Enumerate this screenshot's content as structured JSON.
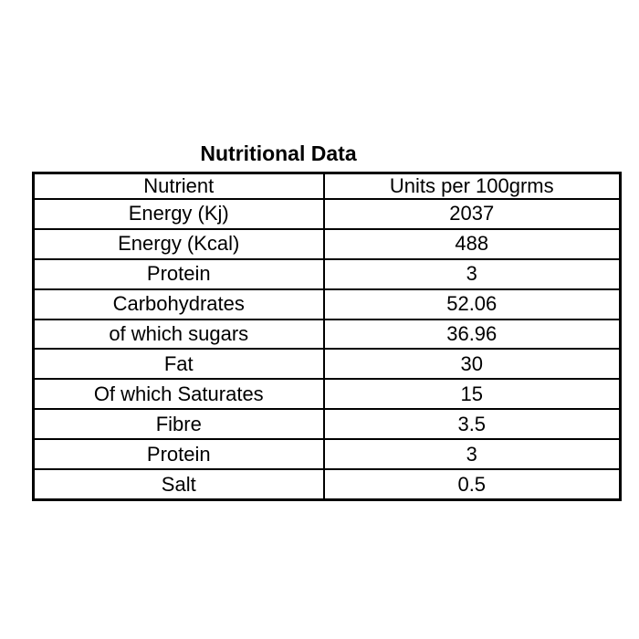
{
  "page": {
    "title": "Nutritional Data"
  },
  "chart_data": {
    "type": "table",
    "title": "Nutritional Data",
    "columns": [
      "Nutrient",
      "Units per 100grms"
    ],
    "rows": [
      {
        "nutrient": "Energy (Kj)",
        "value": "2037"
      },
      {
        "nutrient": "Energy (Kcal)",
        "value": "488"
      },
      {
        "nutrient": "Protein",
        "value": "3"
      },
      {
        "nutrient": "Carbohydrates",
        "value": "52.06"
      },
      {
        "nutrient": "of which sugars",
        "value": "36.96"
      },
      {
        "nutrient": "Fat",
        "value": "30"
      },
      {
        "nutrient": "Of which Saturates",
        "value": "15"
      },
      {
        "nutrient": "Fibre",
        "value": "3.5"
      },
      {
        "nutrient": "Protein",
        "value": "3"
      },
      {
        "nutrient": "Salt",
        "value": "0.5"
      }
    ],
    "layout": {
      "grid": true,
      "border_color": "#000000",
      "text_color": "#000000",
      "background_color": "#ffffff"
    }
  }
}
